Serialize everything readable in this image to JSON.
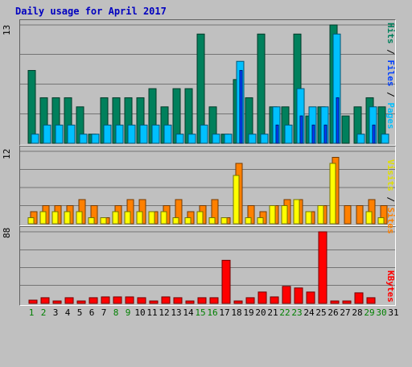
{
  "title": "Daily usage for April 2017",
  "legend": {
    "top": {
      "pages": "Pages",
      "files": "Files",
      "hits": "Hits",
      "sep": " / "
    },
    "mid": {
      "sites": "Sites",
      "visits": "Visits",
      "sep": " / "
    },
    "bottom": {
      "kbytes": "KBytes"
    }
  },
  "colors": {
    "hits": "#00805c",
    "files": "#00c0ff",
    "pages": "#0040ff",
    "visits": "#ffff00",
    "sites": "#ff8000",
    "kbytes": "#ff0000",
    "background": "#c0c0c0",
    "weekend_label": "#008000"
  },
  "chart_data": [
    {
      "type": "bar",
      "panel": "top",
      "ymax_label": "13",
      "ylim": [
        0,
        13
      ],
      "categories": [
        "1",
        "2",
        "3",
        "4",
        "5",
        "6",
        "7",
        "8",
        "9",
        "10",
        "11",
        "12",
        "13",
        "14",
        "15",
        "16",
        "17",
        "18",
        "19",
        "20",
        "21",
        "22",
        "23",
        "24",
        "25",
        "26",
        "27",
        "28",
        "29",
        "30",
        "31"
      ],
      "weekend_days": [
        "1",
        "2",
        "8",
        "9",
        "15",
        "16",
        "22",
        "23",
        "29",
        "30"
      ],
      "series": [
        {
          "name": "Hits",
          "values": [
            8,
            5,
            5,
            5,
            4,
            1,
            5,
            5,
            5,
            5,
            6,
            4,
            6,
            6,
            12,
            4,
            1,
            7,
            5,
            12,
            4,
            4,
            12,
            3,
            4,
            13,
            3,
            4,
            5,
            4,
            0
          ]
        },
        {
          "name": "Files",
          "values": [
            1,
            2,
            2,
            2,
            1,
            1,
            2,
            2,
            2,
            2,
            2,
            2,
            1,
            1,
            2,
            1,
            1,
            9,
            1,
            1,
            4,
            2,
            6,
            4,
            4,
            12,
            0,
            1,
            4,
            1,
            0
          ]
        },
        {
          "name": "Pages",
          "values": [
            0,
            0,
            0,
            0,
            0,
            0,
            0,
            0,
            0,
            0,
            0,
            0,
            0,
            0,
            0,
            0,
            0,
            8,
            0,
            0,
            2,
            0,
            3,
            2,
            2,
            5,
            0,
            0,
            2,
            0,
            0
          ]
        }
      ]
    },
    {
      "type": "bar",
      "panel": "middle",
      "ymax_label": "12",
      "ylim": [
        0,
        12
      ],
      "categories": [
        "1",
        "2",
        "3",
        "4",
        "5",
        "6",
        "7",
        "8",
        "9",
        "10",
        "11",
        "12",
        "13",
        "14",
        "15",
        "16",
        "17",
        "18",
        "19",
        "20",
        "21",
        "22",
        "23",
        "24",
        "25",
        "26",
        "27",
        "28",
        "29",
        "30",
        "31"
      ],
      "series": [
        {
          "name": "Visits",
          "values": [
            1,
            2,
            2,
            2,
            2,
            1,
            1,
            2,
            2,
            2,
            2,
            2,
            1,
            1,
            2,
            1,
            1,
            8,
            1,
            1,
            3,
            3,
            4,
            2,
            3,
            10,
            0,
            0,
            2,
            1,
            0
          ]
        },
        {
          "name": "Sites",
          "values": [
            2,
            3,
            3,
            3,
            4,
            3,
            1,
            3,
            4,
            4,
            2,
            3,
            4,
            2,
            3,
            4,
            1,
            10,
            3,
            2,
            3,
            4,
            4,
            2,
            3,
            11,
            3,
            3,
            4,
            3,
            0
          ]
        }
      ]
    },
    {
      "type": "bar",
      "panel": "bottom",
      "ymax_label": "88",
      "ylim": [
        0,
        88
      ],
      "categories": [
        "1",
        "2",
        "3",
        "4",
        "5",
        "6",
        "7",
        "8",
        "9",
        "10",
        "11",
        "12",
        "13",
        "14",
        "15",
        "16",
        "17",
        "18",
        "19",
        "20",
        "21",
        "22",
        "23",
        "24",
        "25",
        "26",
        "27",
        "28",
        "29",
        "30",
        "31"
      ],
      "series": [
        {
          "name": "KBytes",
          "values": [
            4,
            7,
            3,
            7,
            3,
            7,
            8,
            8,
            8,
            7,
            3,
            8,
            7,
            3,
            7,
            7,
            53,
            3,
            7,
            14,
            8,
            21,
            19,
            14,
            88,
            3,
            3,
            13,
            7,
            0,
            0
          ]
        }
      ]
    }
  ]
}
